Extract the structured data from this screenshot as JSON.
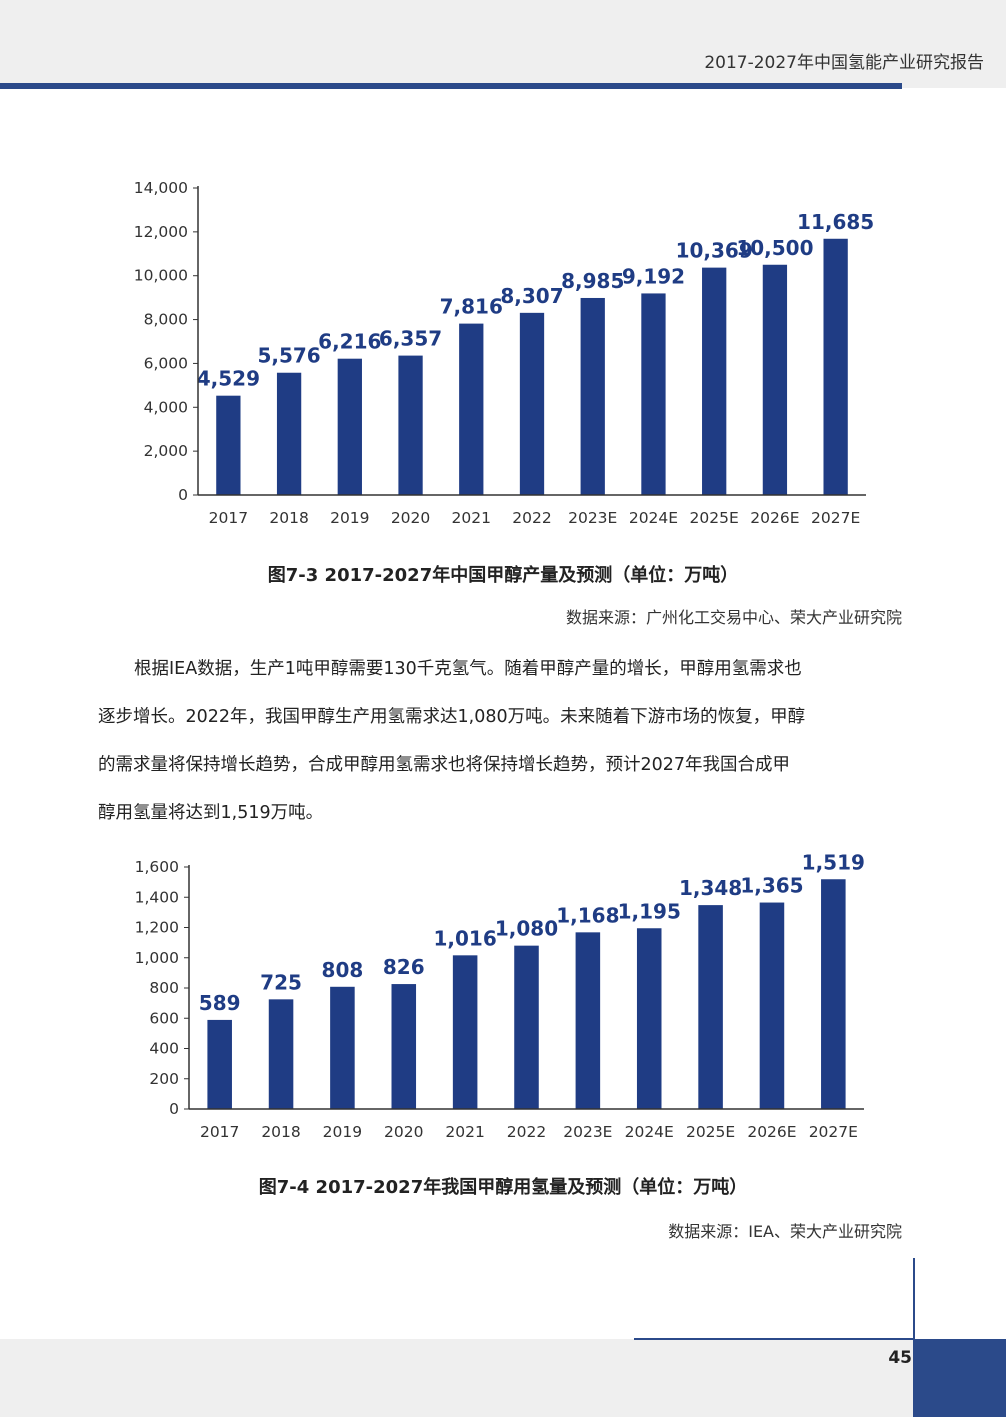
{
  "header": {
    "title": "2017-2027年中国氢能产业研究报告"
  },
  "chart_data": [
    {
      "type": "bar",
      "categories": [
        "2017",
        "2018",
        "2019",
        "2020",
        "2021",
        "2022",
        "2023E",
        "2024E",
        "2025E",
        "2026E",
        "2027E"
      ],
      "values": [
        4529,
        5576,
        6216,
        6357,
        7816,
        8307,
        8985,
        9192,
        10369,
        10500,
        11685
      ],
      "data_labels": [
        "4,529",
        "5,576",
        "6,216",
        "6,357",
        "7,816",
        "8,307",
        "8,985",
        "9,192",
        "10,369",
        "10,500",
        "11,685"
      ],
      "y_ticks": [
        "0",
        "2,000",
        "4,000",
        "6,000",
        "8,000",
        "10,000",
        "12,000",
        "14,000"
      ],
      "ylim": [
        0,
        14000
      ],
      "bar_color": "#1f3c84",
      "grid": false,
      "caption": "图7-3 2017-2027年中国甲醇产量及预测（单位：万吨）",
      "source": "数据来源：广州化工交易中心、荣大产业研究院"
    },
    {
      "type": "bar",
      "categories": [
        "2017",
        "2018",
        "2019",
        "2020",
        "2021",
        "2022",
        "2023E",
        "2024E",
        "2025E",
        "2026E",
        "2027E"
      ],
      "values": [
        589,
        725,
        808,
        826,
        1016,
        1080,
        1168,
        1195,
        1348,
        1365,
        1519
      ],
      "data_labels": [
        "589",
        "725",
        "808",
        "826",
        "1,016",
        "1,080",
        "1,168",
        "1,195",
        "1,348",
        "1,365",
        "1,519"
      ],
      "y_ticks": [
        "0",
        "200",
        "400",
        "600",
        "800",
        "1,000",
        "1,200",
        "1,400",
        "1,600"
      ],
      "ylim": [
        0,
        1600
      ],
      "bar_color": "#1f3c84",
      "grid": false,
      "caption": "图7-4 2017-2027年我国甲醇用氢量及预测（单位：万吨）",
      "source": "数据来源：IEA、荣大产业研究院"
    }
  ],
  "body": {
    "lines": [
      "根据IEA数据，生产1吨甲醇需要130千克氢气。随着甲醇产量的增长，甲醇用氢需求也",
      "逐步增长。2022年，我国甲醇生产用氢需求达1,080万吨。未来随着下游市场的恢复，甲醇",
      "的需求量将保持增长趋势，合成甲醇用氢需求也将保持增长趋势，预计2027年我国合成甲",
      "醇用氢量将达到1,519万吨。"
    ]
  },
  "footer": {
    "page_number": "45"
  }
}
